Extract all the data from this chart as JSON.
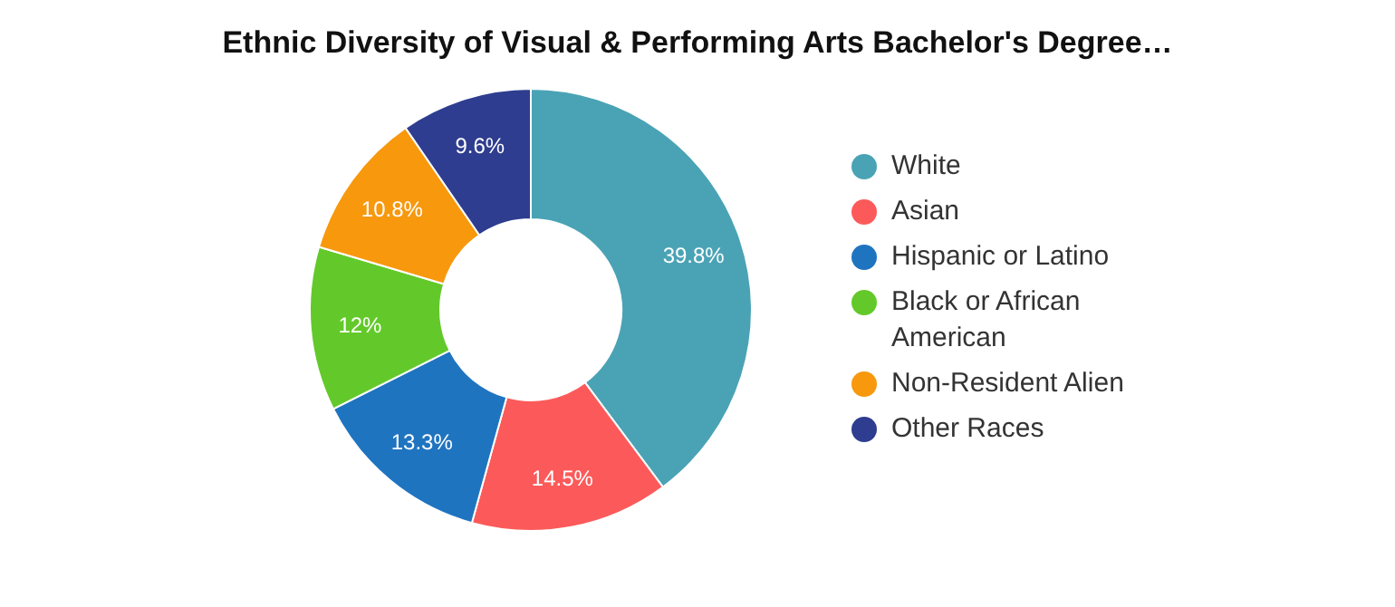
{
  "chart_data": {
    "type": "donut",
    "title": "Ethnic Diversity of Visual & Performing Arts Bachelor's Degree…",
    "categories": [
      "White",
      "Asian",
      "Hispanic or Latino",
      "Black or African American",
      "Non-Resident Alien",
      "Other Races"
    ],
    "values": [
      39.8,
      14.5,
      13.3,
      12,
      10.8,
      9.6
    ],
    "colors": [
      "#4aa3b5",
      "#fc5a5a",
      "#1f74c0",
      "#63c92a",
      "#f7980d",
      "#2e3d8f"
    ],
    "value_labels": [
      "39.8%",
      "14.5%",
      "13.3%",
      "12%",
      "10.8%",
      "9.6%"
    ],
    "legend": "right"
  }
}
